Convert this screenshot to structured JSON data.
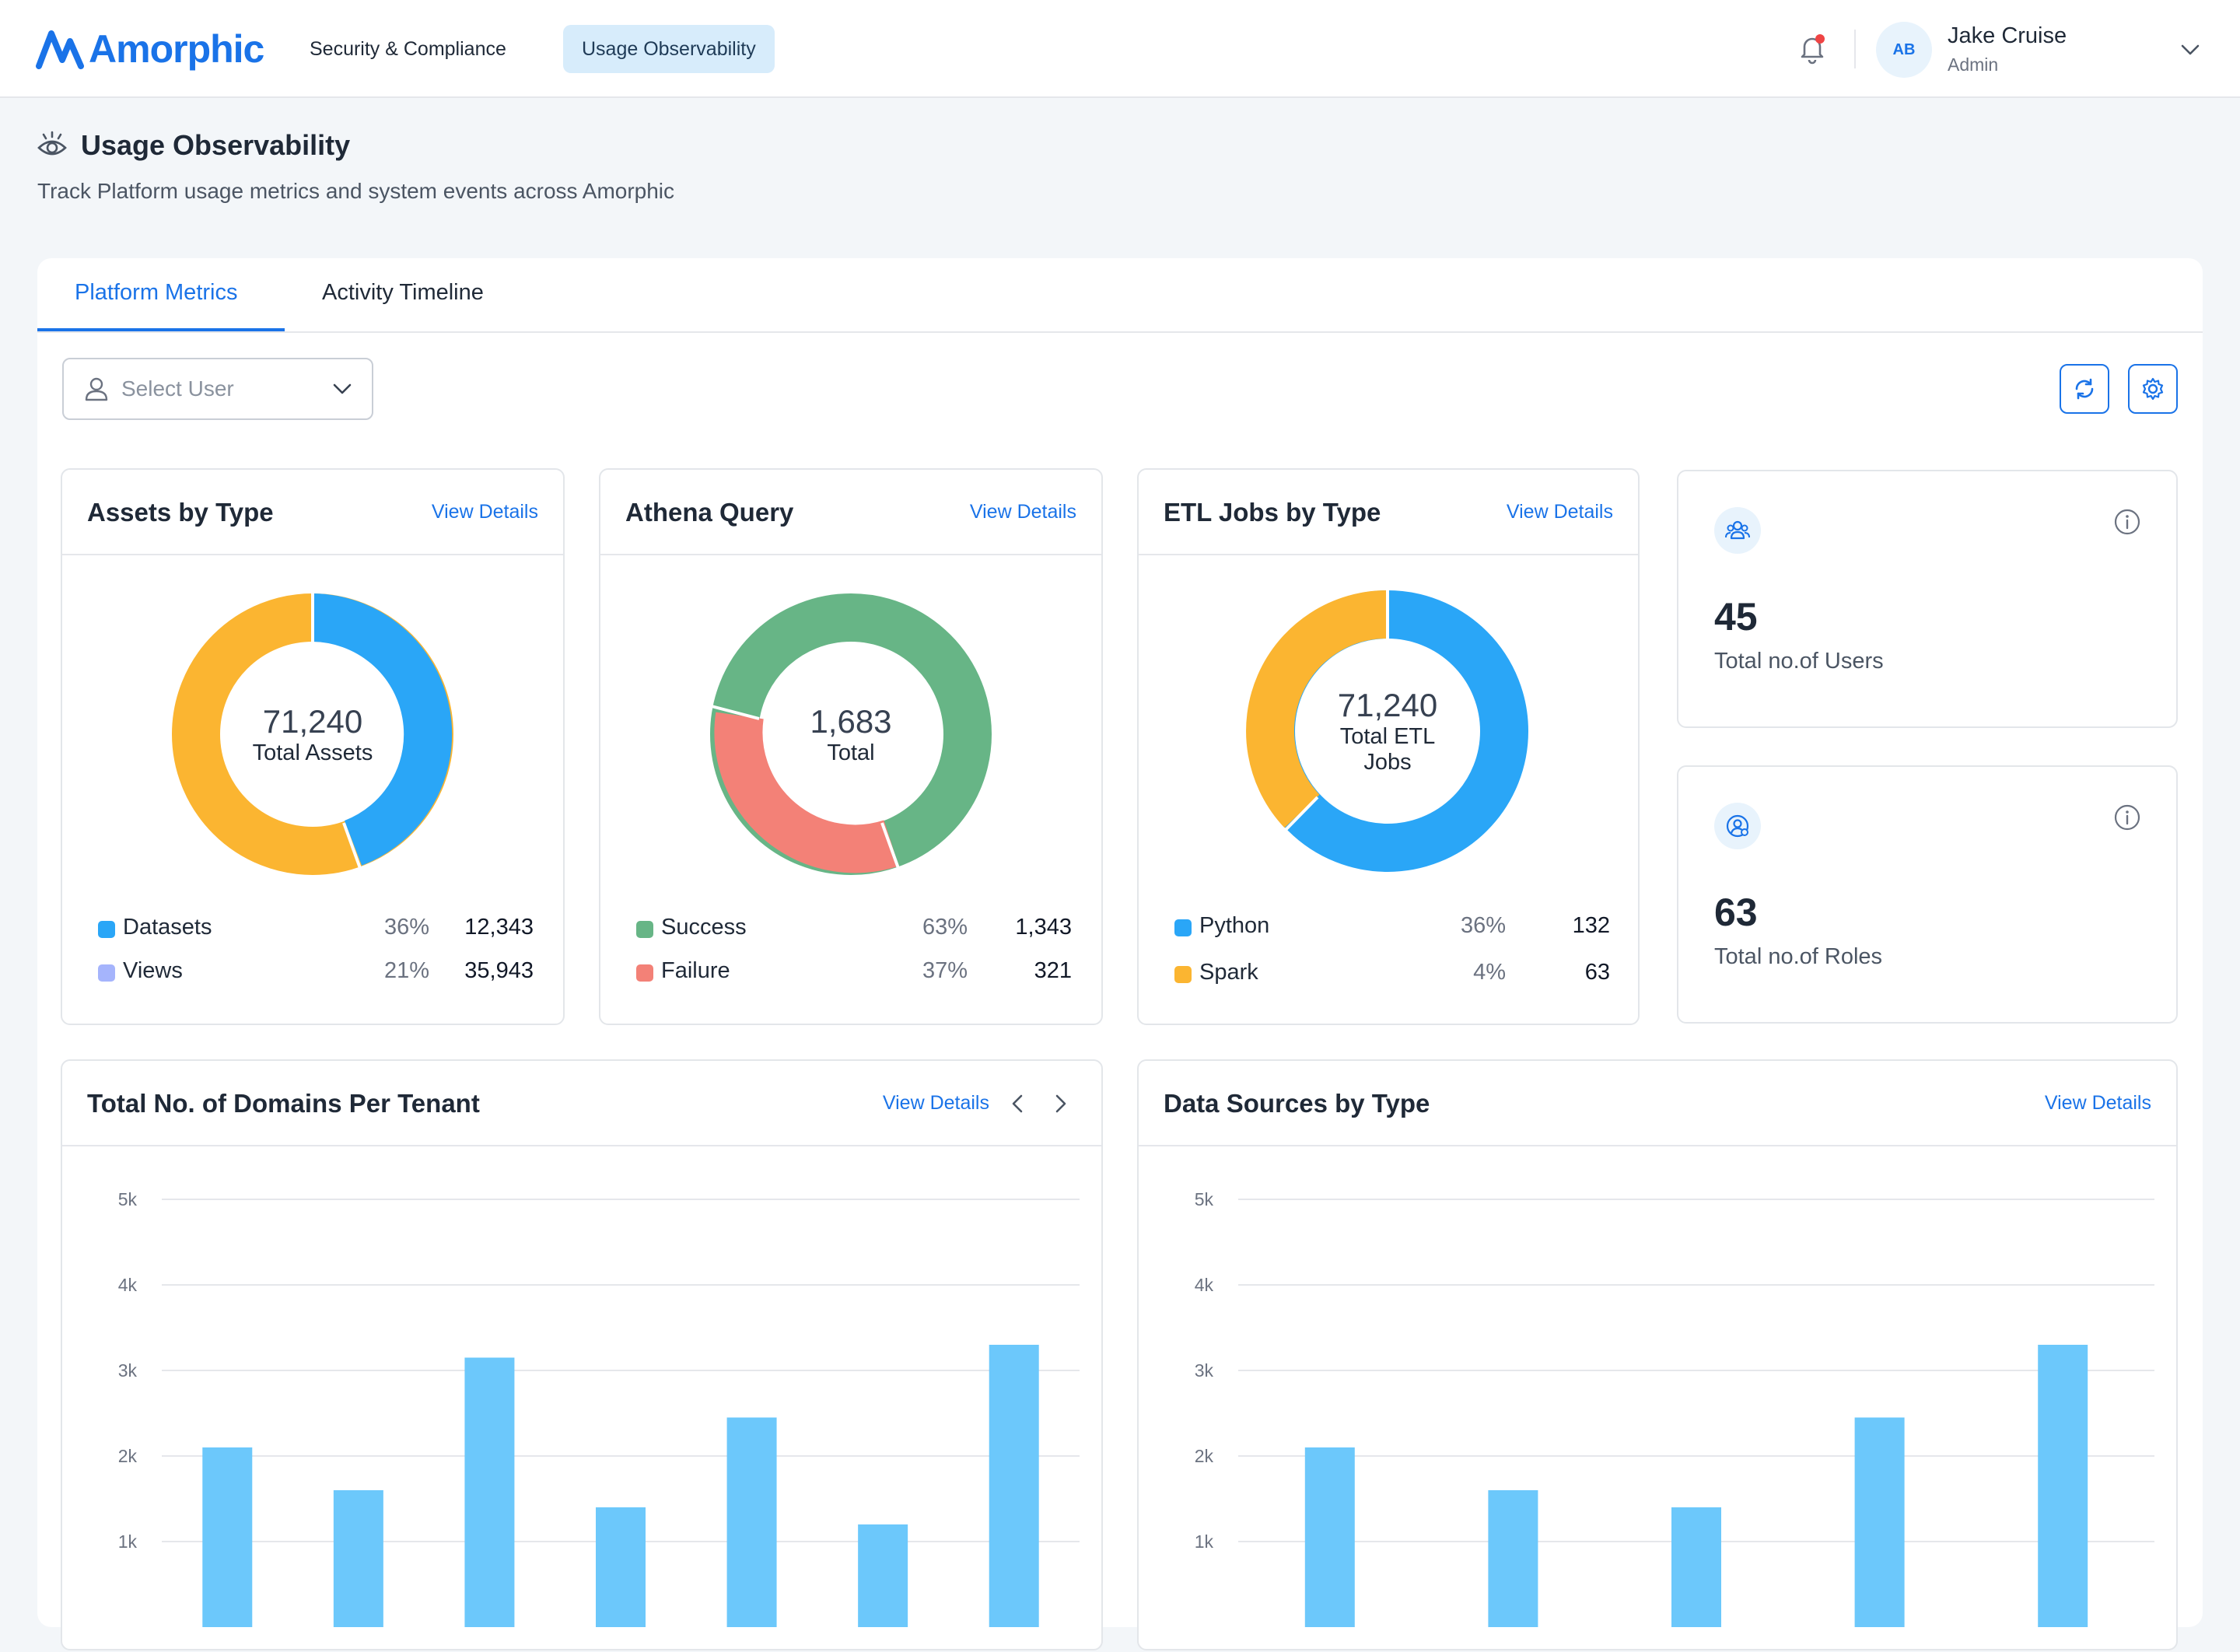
{
  "header": {
    "brand": "Amorphic",
    "nav": [
      {
        "label": "Security & Compliance",
        "active": false
      },
      {
        "label": "Usage Observability",
        "active": true
      }
    ],
    "user": {
      "initials": "AB",
      "name": "Jake Cruise",
      "role": "Admin"
    },
    "notification_dot_color": "#ef4444"
  },
  "page": {
    "title": "Usage Observability",
    "subtitle": "Track Platform usage metrics and system events across Amorphic"
  },
  "tabs": [
    {
      "label": "Platform Metrics",
      "active": true
    },
    {
      "label": "Activity Timeline",
      "active": false
    }
  ],
  "filters": {
    "select_user_placeholder": "Select User"
  },
  "cards": {
    "assets": {
      "title": "Assets by Type",
      "link": "View Details",
      "center_value": "71,240",
      "center_label": "Total Assets",
      "legend": [
        {
          "name": "Datasets",
          "percent": "36%",
          "count": "12,343",
          "color": "#2aa6f7"
        },
        {
          "name": "Views",
          "percent": "21%",
          "count": "35,943",
          "color": "#a5b4fc"
        }
      ]
    },
    "athena": {
      "title": "Athena Query",
      "link": "View Details",
      "center_value": "1,683",
      "center_label": "Total",
      "legend": [
        {
          "name": "Success",
          "percent": "63%",
          "count": "1,343",
          "color": "#67b586"
        },
        {
          "name": "Failure",
          "percent": "37%",
          "count": "321",
          "color": "#f38177"
        }
      ]
    },
    "etl": {
      "title": "ETL Jobs by Type",
      "link": "View Details",
      "center_value": "71,240",
      "center_label": "Total ETL Jobs",
      "legend": [
        {
          "name": "Python",
          "percent": "36%",
          "count": "132",
          "color": "#2aa6f7"
        },
        {
          "name": "Spark",
          "percent": "4%",
          "count": "63",
          "color": "#fbb531"
        }
      ]
    },
    "users": {
      "value": "45",
      "label": "Total no.of Users"
    },
    "roles": {
      "value": "63",
      "label": "Total no.of Roles"
    },
    "domains": {
      "title": "Total No. of Domains Per Tenant",
      "link": "View Details"
    },
    "datasources": {
      "title": "Data Sources by Type",
      "link": "View Details"
    }
  },
  "chart_data": [
    {
      "type": "bar",
      "title": "Total No. of Domains Per Tenant",
      "y_ticks": [
        "5k",
        "4k",
        "3k",
        "2k",
        "1k"
      ],
      "ylim": [
        0,
        5000
      ],
      "values": [
        2100,
        1600,
        3150,
        1400,
        2450,
        1200,
        3300
      ],
      "color": "#6cc8fb",
      "grid": true
    },
    {
      "type": "bar",
      "title": "Data Sources by Type",
      "y_ticks": [
        "5k",
        "4k",
        "3k",
        "2k",
        "1k"
      ],
      "ylim": [
        0,
        5000
      ],
      "values": [
        2100,
        1600,
        1400,
        2450,
        3300
      ],
      "color": "#6cc8fb",
      "grid": true
    }
  ]
}
